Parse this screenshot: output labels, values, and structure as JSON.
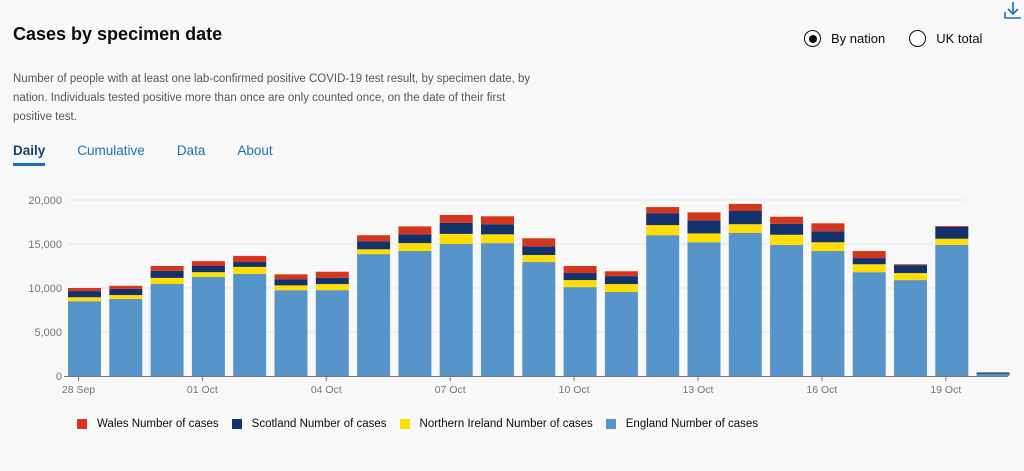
{
  "header": {
    "title": "Cases by specimen date",
    "description": "Number of people with at least one lab-confirmed positive COVID-19 test result, by specimen date, by nation. Individuals tested positive more than once are only counted once, on the date of their first positive test.",
    "download_icon": "download-icon"
  },
  "view_options": [
    {
      "label": "By nation",
      "selected": true
    },
    {
      "label": "UK total",
      "selected": false
    }
  ],
  "tabs": [
    {
      "label": "Daily",
      "active": true
    },
    {
      "label": "Cumulative",
      "active": false
    },
    {
      "label": "Data",
      "active": false
    },
    {
      "label": "About",
      "active": false
    }
  ],
  "chart_data": {
    "type": "bar",
    "stacked": true,
    "title": "Cases by specimen date",
    "xlabel": "",
    "ylabel": "",
    "ylim": [
      0,
      20000
    ],
    "yticks": [
      0,
      5000,
      10000,
      15000,
      20000
    ],
    "ytick_labels": [
      "0",
      "5,000",
      "10,000",
      "15,000",
      "20,000"
    ],
    "grid": true,
    "legend_position": "bottom",
    "categories": [
      "28 Sep",
      "29 Sep",
      "30 Sep",
      "01 Oct",
      "02 Oct",
      "03 Oct",
      "04 Oct",
      "05 Oct",
      "06 Oct",
      "07 Oct",
      "08 Oct",
      "09 Oct",
      "10 Oct",
      "11 Oct",
      "12 Oct",
      "13 Oct",
      "14 Oct",
      "15 Oct",
      "16 Oct",
      "17 Oct",
      "18 Oct",
      "19 Oct",
      "20 Oct"
    ],
    "xtick_labels": [
      {
        "index": 0,
        "label": "28 Sep"
      },
      {
        "index": 3,
        "label": "01 Oct"
      },
      {
        "index": 6,
        "label": "04 Oct"
      },
      {
        "index": 9,
        "label": "07 Oct"
      },
      {
        "index": 12,
        "label": "10 Oct"
      },
      {
        "index": 15,
        "label": "13 Oct"
      },
      {
        "index": 18,
        "label": "16 Oct"
      },
      {
        "index": 21,
        "label": "19 Oct"
      }
    ],
    "series": [
      {
        "name": "England Number of cases",
        "color": "#5694ca",
        "values": [
          8500,
          8750,
          10450,
          11250,
          11600,
          9750,
          9750,
          13850,
          14200,
          15000,
          15100,
          12950,
          10100,
          9550,
          16000,
          15200,
          16250,
          14900,
          14200,
          11800,
          10900,
          14900,
          250
        ]
      },
      {
        "name": "Northern Ireland Number of cases",
        "color": "#ffdd00",
        "values": [
          450,
          450,
          700,
          550,
          800,
          550,
          700,
          550,
          900,
          1150,
          1000,
          800,
          800,
          900,
          1150,
          1000,
          1000,
          1150,
          1000,
          900,
          800,
          700,
          0
        ]
      },
      {
        "name": "Scotland Number of cases",
        "color": "#12326e",
        "values": [
          700,
          700,
          800,
          700,
          550,
          700,
          700,
          900,
          1000,
          1250,
          1150,
          1000,
          800,
          900,
          1350,
          1500,
          1500,
          1250,
          1250,
          700,
          900,
          1350,
          150
        ]
      },
      {
        "name": "Wales Number of cases",
        "color": "#d4351c",
        "values": [
          350,
          350,
          550,
          550,
          700,
          550,
          700,
          700,
          900,
          900,
          900,
          900,
          800,
          550,
          700,
          900,
          800,
          800,
          900,
          800,
          100,
          100,
          0
        ]
      }
    ],
    "legend": [
      {
        "label": "Wales Number of cases",
        "color": "#d4351c"
      },
      {
        "label": "Scotland Number of cases",
        "color": "#12326e"
      },
      {
        "label": "Northern Ireland Number of cases",
        "color": "#ffdd00"
      },
      {
        "label": "England Number of cases",
        "color": "#5694ca"
      }
    ]
  }
}
